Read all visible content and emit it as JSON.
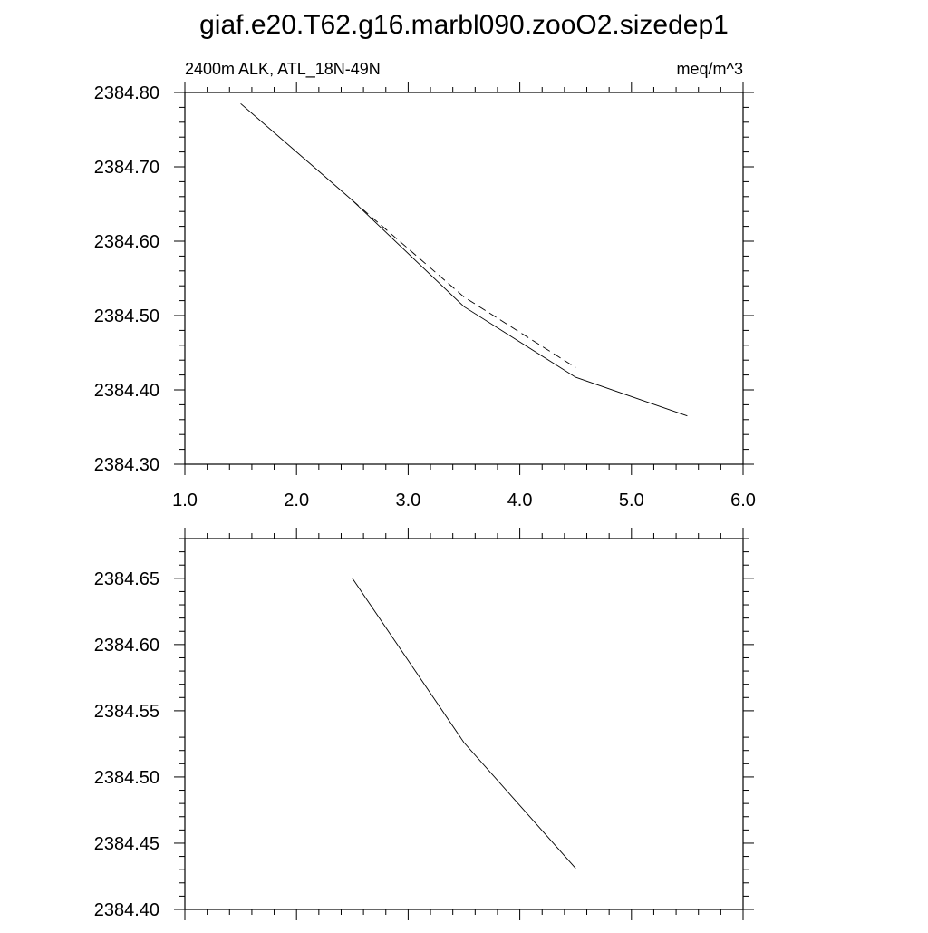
{
  "title": "giaf.e20.T62.g16.marbl090.zooO2.sizedep1",
  "chart_data": [
    {
      "type": "line",
      "title_left": "2400m ALK, ATL_18N-49N",
      "title_right": "meq/m^3",
      "xlim": [
        1.0,
        6.0
      ],
      "ylim": [
        2384.3,
        2384.8
      ],
      "xticks": [
        "1.0",
        "2.0",
        "3.0",
        "4.0",
        "5.0",
        "6.0"
      ],
      "yticks": [
        "2384.30",
        "2384.40",
        "2384.50",
        "2384.60",
        "2384.70",
        "2384.80"
      ],
      "grid": false,
      "series": [
        {
          "style": "solid",
          "x": [
            1.5,
            2.5,
            3.5,
            4.5,
            5.5
          ],
          "y": [
            2384.785,
            2384.655,
            2384.512,
            2384.417,
            2384.365
          ]
        },
        {
          "style": "dashed",
          "x": [
            2.5,
            3.5,
            4.5
          ],
          "y": [
            2384.655,
            2384.525,
            2384.43
          ]
        }
      ]
    },
    {
      "type": "line",
      "xlim": [
        1.0,
        6.0
      ],
      "ylim": [
        2384.4,
        2384.68
      ],
      "xticks": [],
      "yticks": [
        "2384.40",
        "2384.45",
        "2384.50",
        "2384.55",
        "2384.60",
        "2384.65"
      ],
      "grid": false,
      "series": [
        {
          "style": "solid",
          "x": [
            2.5,
            3.5,
            4.5
          ],
          "y": [
            2384.65,
            2384.526,
            2384.431
          ]
        }
      ]
    }
  ]
}
